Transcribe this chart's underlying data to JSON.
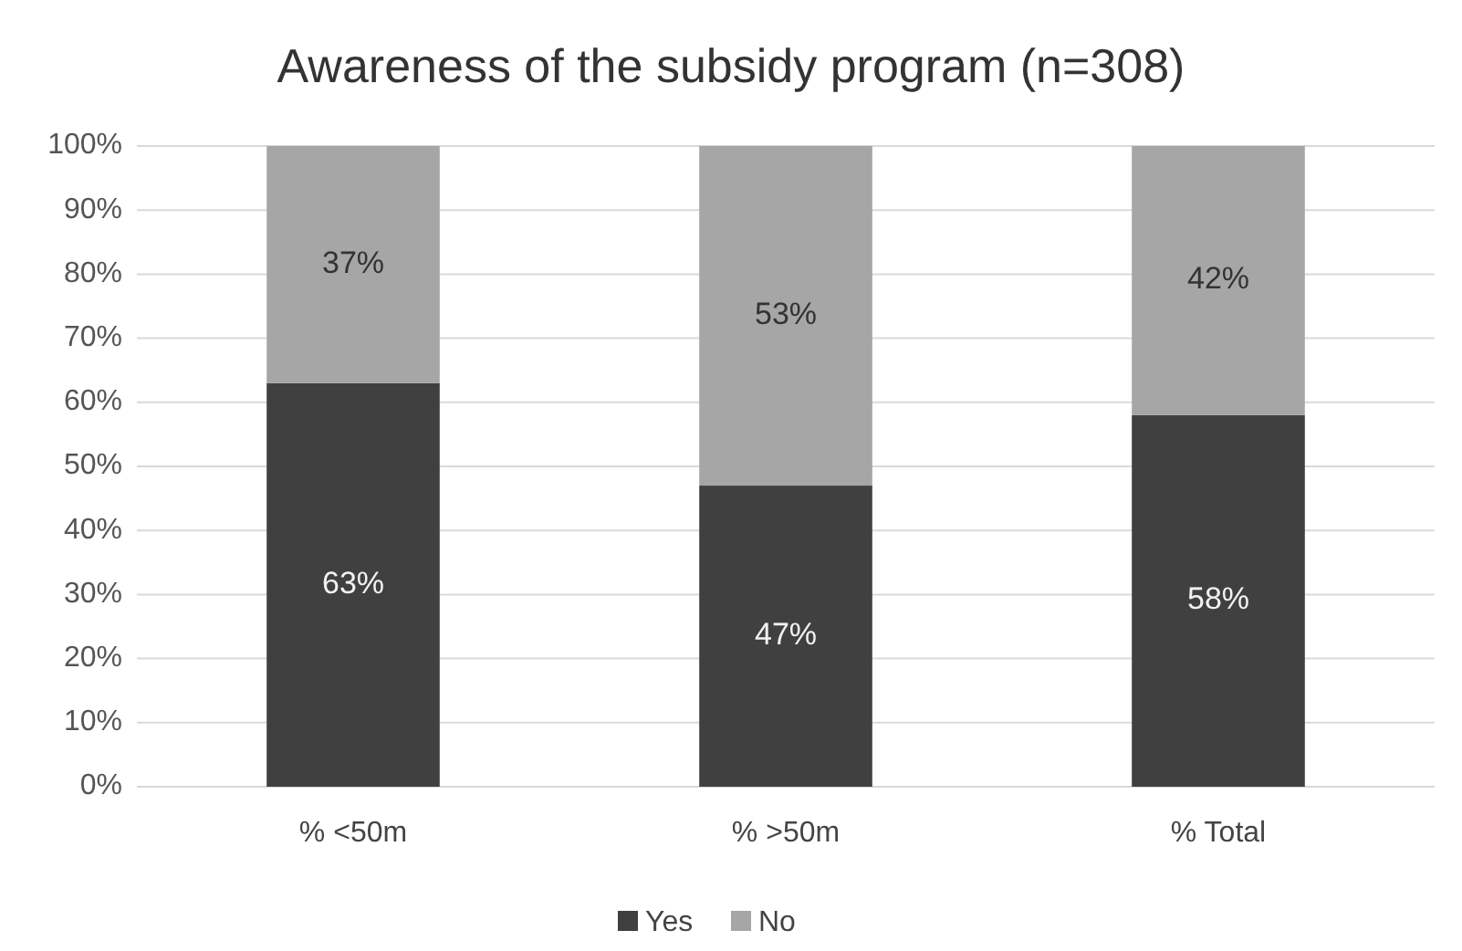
{
  "chart_data": {
    "type": "bar",
    "title": "Awareness of the subsidy program (n=308)",
    "categories": [
      "% <50m",
      "% >50m",
      "% Total"
    ],
    "stacked": true,
    "series": [
      {
        "name": "Yes",
        "color": "#404040",
        "values": [
          63,
          47,
          58
        ],
        "value_labels": [
          "63%",
          "47%",
          "58%"
        ]
      },
      {
        "name": "No",
        "color": "#a6a6a6",
        "values": [
          37,
          53,
          42
        ],
        "value_labels": [
          "37%",
          "53%",
          "42%"
        ]
      }
    ],
    "ylim": [
      0,
      100
    ],
    "yticks": [
      {
        "value": 0,
        "label": "0%"
      },
      {
        "value": 10,
        "label": "10%"
      },
      {
        "value": 20,
        "label": "20%"
      },
      {
        "value": 30,
        "label": "30%"
      },
      {
        "value": 40,
        "label": "40%"
      },
      {
        "value": 50,
        "label": "50%"
      },
      {
        "value": 60,
        "label": "60%"
      },
      {
        "value": 70,
        "label": "70%"
      },
      {
        "value": 80,
        "label": "80%"
      },
      {
        "value": 90,
        "label": "90%"
      },
      {
        "value": 100,
        "label": "100%"
      }
    ],
    "grid": "y",
    "legend": "bottom"
  }
}
